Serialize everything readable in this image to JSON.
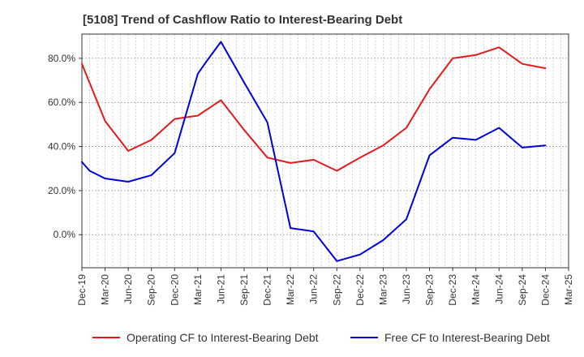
{
  "chart_data": {
    "type": "line",
    "title": "[5108]  Trend of Cashflow Ratio to Interest-Bearing Debt",
    "xlabel": "",
    "ylabel": "",
    "x_ticks": [
      "Dec-19",
      "Mar-20",
      "Jun-20",
      "Sep-20",
      "Dec-20",
      "Mar-21",
      "Jun-21",
      "Sep-21",
      "Dec-21",
      "Mar-22",
      "Jun-22",
      "Sep-22",
      "Dec-22",
      "Mar-23",
      "Jun-23",
      "Sep-23",
      "Dec-23",
      "Mar-24",
      "Jun-24",
      "Sep-24",
      "Dec-24",
      "Mar-25"
    ],
    "y_ticks": [
      0,
      20,
      40,
      60,
      80
    ],
    "y_tick_labels": [
      "0.0%",
      "20.0%",
      "40.0%",
      "60.0%",
      "80.0%"
    ],
    "ylim": [
      -15,
      91
    ],
    "grid": true,
    "legend_position": "bottom",
    "series": [
      {
        "name": "Operating CF to Interest-Bearing Debt",
        "color": "#e41a1c",
        "points": [
          [
            "Dec-19",
            77.5
          ],
          [
            "Mar-20",
            51.5
          ],
          [
            "Jun-20",
            38.0
          ],
          [
            "Sep-20",
            43.0
          ],
          [
            "Dec-20",
            52.5
          ],
          [
            "Mar-21",
            54.0
          ],
          [
            "Jun-21",
            61.0
          ],
          [
            "Sep-21",
            47.5
          ],
          [
            "Dec-21",
            35.0
          ],
          [
            "Mar-22",
            32.5
          ],
          [
            "Jun-22",
            34.0
          ],
          [
            "Sep-22",
            29.0
          ],
          [
            "Dec-22",
            35.0
          ],
          [
            "Mar-23",
            40.5
          ],
          [
            "Jun-23",
            48.5
          ],
          [
            "Sep-23",
            66.0
          ],
          [
            "Dec-23",
            80.0
          ],
          [
            "Mar-24",
            81.5
          ],
          [
            "Jun-24",
            85.0
          ],
          [
            "Sep-24",
            77.5
          ],
          [
            "Dec-24",
            75.5
          ]
        ]
      },
      {
        "name": "Free CF to Interest-Bearing Debt",
        "color": "#0000dd",
        "points": [
          [
            "Dec-19",
            33.0
          ],
          [
            "Jan-20",
            29.0
          ],
          [
            "Mar-20",
            25.5
          ],
          [
            "Jun-20",
            24.0
          ],
          [
            "Sep-20",
            27.0
          ],
          [
            "Dec-20",
            37.0
          ],
          [
            "Mar-21",
            73.0
          ],
          [
            "Apr-21",
            78.0
          ],
          [
            "Jun-21",
            87.5
          ],
          [
            "Sep-21",
            69.0
          ],
          [
            "Dec-21",
            51.0
          ],
          [
            "Mar-22",
            3.0
          ],
          [
            "Jun-22",
            1.5
          ],
          [
            "Sep-22",
            -12.0
          ],
          [
            "Dec-22",
            -9.0
          ],
          [
            "Mar-23",
            -2.5
          ],
          [
            "Jun-23",
            7.0
          ],
          [
            "Sep-23",
            36.0
          ],
          [
            "Dec-23",
            44.0
          ],
          [
            "Mar-24",
            43.0
          ],
          [
            "Jun-24",
            48.5
          ],
          [
            "Sep-24",
            39.5
          ],
          [
            "Dec-24",
            40.5
          ]
        ]
      }
    ]
  }
}
